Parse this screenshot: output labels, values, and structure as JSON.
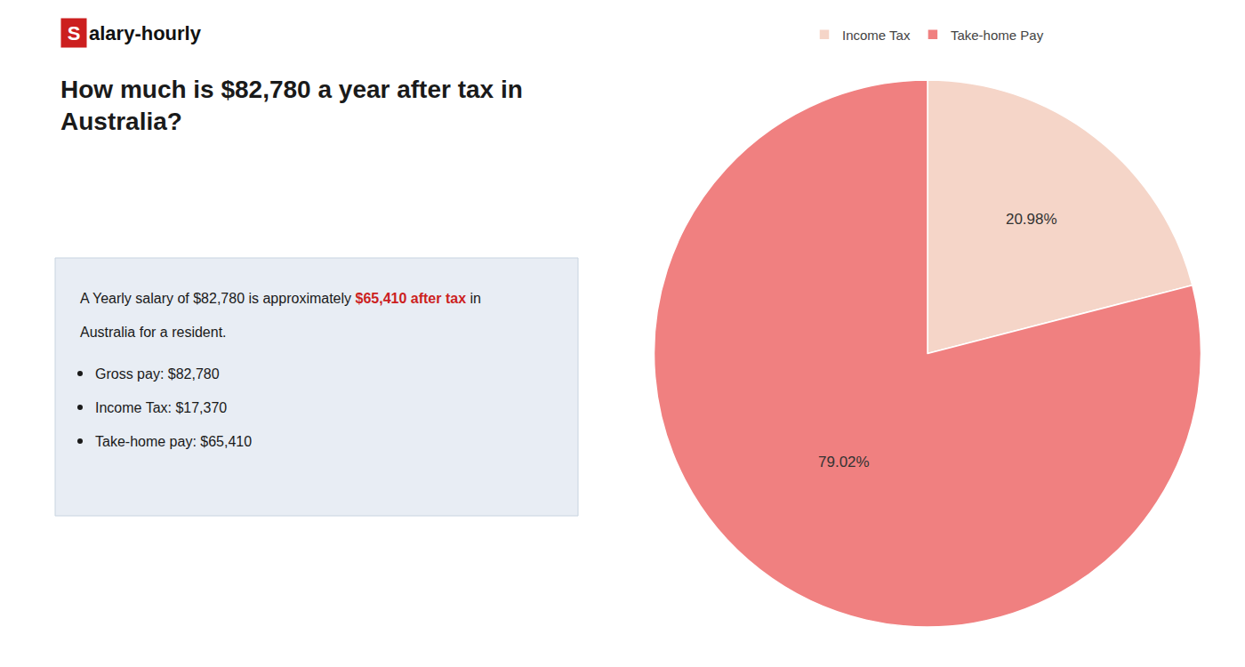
{
  "chart_data": {
    "type": "pie",
    "title": "How much is $82,780 a year after tax in\nAustralia?",
    "categories": [
      "Income Tax",
      "Take-home Pay"
    ],
    "values": [
      20.98,
      79.02
    ],
    "value_labels": [
      "20.98%",
      "79.02%"
    ],
    "colors": [
      "#f5d5c8",
      "#f08080"
    ],
    "data_labels": true,
    "legend": "top",
    "annotations": [
      [
        {
          "text": "S",
          "color": "#cc1f1f"
        },
        {
          "text": "alary-hourly"
        }
      ],
      [
        {
          "text": "A Yearly salary of $82,780 is approximately "
        },
        {
          "text": "$65,410 after tax",
          "color": "#cc1f1f"
        },
        {
          "text": " in"
        }
      ],
      [
        {
          "text": "Australia for a resident."
        }
      ],
      [
        {
          "text": "Gross pay: $82,780"
        }
      ],
      [
        {
          "text": "Income Tax: $17,370"
        }
      ],
      [
        {
          "text": "Take-home pay: $65,410"
        }
      ]
    ]
  }
}
